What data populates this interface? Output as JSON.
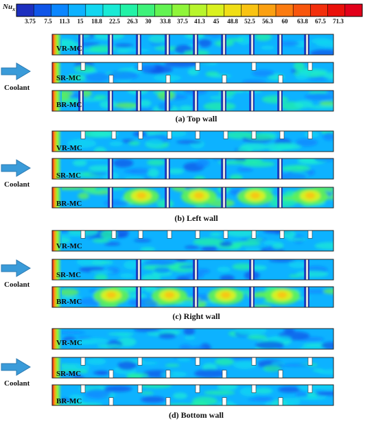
{
  "legend": {
    "symbol": "Nu",
    "subscript": "x",
    "ticks": [
      "3.75",
      "7.5",
      "11.3",
      "15",
      "18.8",
      "22.5",
      "26.3",
      "30",
      "33.8",
      "37.5",
      "41.3",
      "45",
      "48.8",
      "52.5",
      "56.3",
      "60",
      "63.8",
      "67.5",
      "71.3"
    ],
    "colors": [
      "#1d2fbf",
      "#0f55e8",
      "#0a86ff",
      "#0db2ff",
      "#12d7f0",
      "#19ead5",
      "#22f2a6",
      "#3ef27a",
      "#63f352",
      "#8ff53a",
      "#b8f52c",
      "#daf11f",
      "#f0de16",
      "#f9c312",
      "#fba011",
      "#fb7b10",
      "#f8560d",
      "#f32f0c",
      "#ea100a",
      "#e2001a"
    ]
  },
  "groups": [
    {
      "caption": "(a) Top wall",
      "coolant": "Coolant",
      "rows": [
        "VR-MC",
        "SR-MC",
        "BR-MC"
      ]
    },
    {
      "caption": "(b) Left wall",
      "coolant": "Coolant",
      "rows": [
        "VR-MC",
        "SR-MC",
        "BR-MC"
      ]
    },
    {
      "caption": "(c) Right wall",
      "coolant": "Coolant",
      "rows": [
        "VR-MC",
        "SR-MC",
        "BR-MC"
      ]
    },
    {
      "caption": "(d) Bottom wall",
      "coolant": "Coolant",
      "rows": [
        "VR-MC",
        "SR-MC",
        "BR-MC"
      ]
    }
  ],
  "colors": {
    "arrow": "#3a9bd9",
    "arrow_edge": "#2a78b0",
    "channel_base": "#0db2ff",
    "frame": "#222222"
  }
}
